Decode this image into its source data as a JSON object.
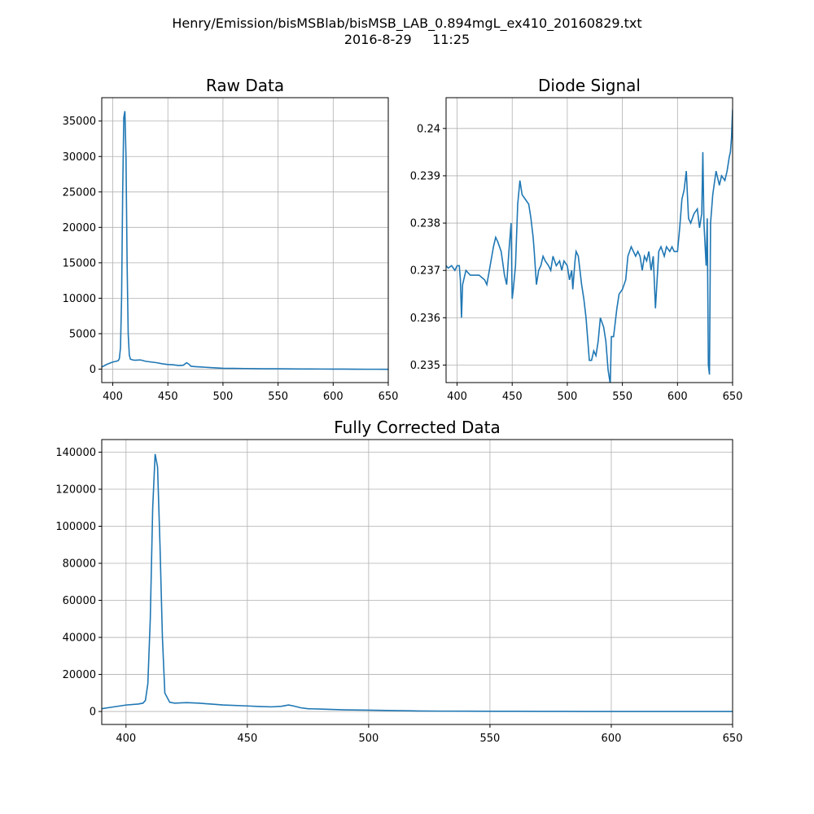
{
  "header": {
    "title_line1": "Henry/Emission/bisMSBlab/bisMSB_LAB_0.894mgL_ex410_20160829.txt",
    "title_line2": "2016-8-29     11:25"
  },
  "colors": {
    "line": "#1f77b4",
    "grid": "#b0b0b0",
    "axes": "#000000"
  },
  "chart_data": [
    {
      "type": "line",
      "title": "Raw Data",
      "xlabel": "",
      "ylabel": "",
      "xlim": [
        390,
        650
      ],
      "ylim": [
        -1900,
        38300
      ],
      "xticks": [
        400,
        450,
        500,
        550,
        600,
        650
      ],
      "yticks": [
        0,
        5000,
        10000,
        15000,
        20000,
        25000,
        30000,
        35000
      ],
      "grid": true,
      "series": [
        {
          "x": [
            390,
            395,
            400,
            403,
            405,
            406,
            407,
            408,
            409,
            410,
            411,
            412,
            413,
            414,
            415,
            416,
            418,
            420,
            425,
            430,
            435,
            440,
            445,
            450,
            455,
            460,
            464,
            467,
            469,
            471,
            475,
            480,
            490,
            500,
            510,
            520,
            530,
            540,
            550,
            560,
            570,
            580,
            590,
            600,
            610,
            620,
            630,
            640,
            650
          ],
          "y": [
            300,
            700,
            1000,
            1100,
            1200,
            1500,
            3000,
            10000,
            25000,
            35500,
            36400,
            30000,
            15000,
            5000,
            2000,
            1400,
            1300,
            1250,
            1300,
            1100,
            1000,
            900,
            750,
            650,
            600,
            500,
            550,
            900,
            700,
            400,
            350,
            300,
            200,
            120,
            100,
            80,
            60,
            50,
            40,
            30,
            20,
            20,
            10,
            0,
            0,
            -10,
            -20,
            -20,
            -30
          ]
        }
      ]
    },
    {
      "type": "line",
      "title": "Diode Signal",
      "xlabel": "",
      "ylabel": "",
      "xlim": [
        390,
        650
      ],
      "ylim": [
        0.23463,
        0.24065
      ],
      "xticks": [
        400,
        450,
        500,
        550,
        600,
        650
      ],
      "yticks": [
        0.235,
        0.236,
        0.237,
        0.238,
        0.239,
        0.24
      ],
      "grid": true,
      "series": [
        {
          "x": [
            390,
            392,
            395,
            398,
            400,
            402,
            403,
            404,
            405,
            408,
            412,
            415,
            420,
            425,
            427,
            430,
            433,
            435,
            437,
            440,
            443,
            445,
            447,
            449,
            450,
            451,
            453,
            455,
            457,
            459,
            462,
            465,
            467,
            469,
            470,
            472,
            474,
            476,
            478,
            480,
            483,
            485,
            487,
            490,
            493,
            495,
            497,
            500,
            502,
            504,
            505,
            507,
            508,
            510,
            513,
            515,
            517,
            519,
            520,
            522,
            524,
            526,
            528,
            530,
            533,
            535,
            537,
            539,
            540,
            542,
            544,
            545,
            547,
            550,
            553,
            555,
            558,
            560,
            562,
            564,
            566,
            568,
            570,
            572,
            574,
            576,
            578,
            580,
            583,
            585,
            588,
            590,
            593,
            595,
            597,
            600,
            602,
            604,
            606,
            608,
            610,
            612,
            615,
            618,
            620,
            622,
            623,
            624,
            626,
            627,
            628,
            629,
            630,
            632,
            635,
            638,
            640,
            643,
            645,
            647,
            648,
            649,
            650
          ],
          "y": [
            0.2371,
            0.23705,
            0.2371,
            0.237,
            0.2371,
            0.2371,
            0.2368,
            0.236,
            0.2367,
            0.237,
            0.2369,
            0.2369,
            0.2369,
            0.2368,
            0.2367,
            0.2371,
            0.2375,
            0.2377,
            0.2376,
            0.2374,
            0.2369,
            0.2367,
            0.2374,
            0.238,
            0.2364,
            0.2366,
            0.2371,
            0.2384,
            0.2389,
            0.2386,
            0.2385,
            0.2384,
            0.2381,
            0.2377,
            0.2374,
            0.2367,
            0.237,
            0.2371,
            0.2373,
            0.2372,
            0.2371,
            0.237,
            0.2373,
            0.2371,
            0.2372,
            0.237,
            0.2372,
            0.2371,
            0.2368,
            0.237,
            0.2366,
            0.2372,
            0.2374,
            0.2373,
            0.2367,
            0.2364,
            0.236,
            0.2354,
            0.2351,
            0.2351,
            0.2353,
            0.2352,
            0.2355,
            0.236,
            0.2358,
            0.2355,
            0.2349,
            0.2346,
            0.2356,
            0.2356,
            0.236,
            0.2362,
            0.2365,
            0.2366,
            0.2368,
            0.2373,
            0.2375,
            0.2374,
            0.2373,
            0.2374,
            0.2373,
            0.237,
            0.2373,
            0.2372,
            0.2374,
            0.237,
            0.2373,
            0.2362,
            0.2374,
            0.2375,
            0.2373,
            0.2375,
            0.2374,
            0.2375,
            0.2374,
            0.2374,
            0.2379,
            0.2385,
            0.2387,
            0.2391,
            0.2381,
            0.238,
            0.2382,
            0.2383,
            0.2379,
            0.2382,
            0.2395,
            0.238,
            0.2371,
            0.2381,
            0.235,
            0.2348,
            0.238,
            0.2386,
            0.2391,
            0.2388,
            0.239,
            0.2389,
            0.2391,
            0.2394,
            0.2395,
            0.2398,
            0.2404
          ]
        }
      ]
    },
    {
      "type": "line",
      "title": "Fully Corrected Data",
      "xlabel": "",
      "ylabel": "",
      "xlim": [
        390,
        650
      ],
      "ylim": [
        -7000,
        146800
      ],
      "xticks": [
        400,
        450,
        500,
        550,
        600,
        650
      ],
      "yticks": [
        0,
        20000,
        40000,
        60000,
        80000,
        100000,
        120000,
        140000
      ],
      "grid": true,
      "series": [
        {
          "x": [
            390,
            395,
            400,
            405,
            407,
            408,
            409,
            410,
            411,
            412,
            413,
            414,
            415,
            416,
            418,
            420,
            425,
            430,
            435,
            440,
            450,
            455,
            460,
            464,
            467,
            469,
            472,
            475,
            480,
            490,
            500,
            510,
            520,
            530,
            540,
            550,
            560,
            570,
            580,
            590,
            600,
            610,
            620,
            630,
            640,
            650
          ],
          "y": [
            1500,
            2500,
            3500,
            4000,
            4500,
            6000,
            15000,
            50000,
            110000,
            139000,
            132000,
            90000,
            40000,
            10000,
            5000,
            4500,
            4800,
            4500,
            4000,
            3500,
            3000,
            2700,
            2500,
            2800,
            3500,
            3000,
            2000,
            1500,
            1300,
            900,
            700,
            500,
            300,
            200,
            150,
            100,
            100,
            50,
            50,
            0,
            0,
            0,
            0,
            0,
            0,
            0
          ]
        }
      ]
    }
  ]
}
